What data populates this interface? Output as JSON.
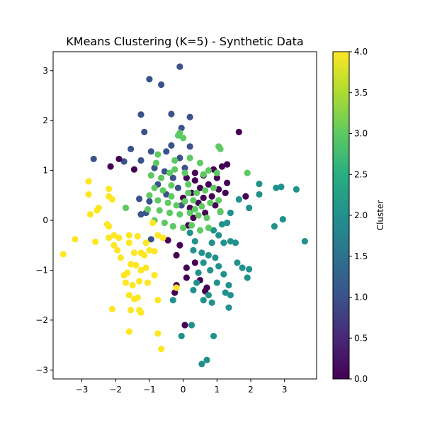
{
  "chart_data": {
    "type": "scatter",
    "title": "KMeans Clustering (K=5) - Synthetic Data",
    "xlabel": "",
    "ylabel": "",
    "xlim": [
      -3.85,
      3.95
    ],
    "ylim": [
      -3.18,
      3.38
    ],
    "xticks": [
      -3,
      -2,
      -1,
      0,
      1,
      2,
      3
    ],
    "yticks": [
      -3,
      -2,
      -1,
      0,
      1,
      2,
      3
    ],
    "grid": false,
    "colorbar": {
      "label": "Cluster",
      "range": [
        0.0,
        4.0
      ],
      "ticks": [
        "0.0",
        "0.5",
        "1.0",
        "1.5",
        "2.0",
        "2.5",
        "3.0",
        "3.5",
        "4.0"
      ],
      "colormap": "viridis"
    },
    "cluster_colors": [
      "#440154",
      "#3b528b",
      "#21918c",
      "#5ec962",
      "#fde725"
    ],
    "points": [
      {
        "x": -0.1,
        "y": 3.08,
        "c": 1
      },
      {
        "x": -1.0,
        "y": 2.83,
        "c": 1
      },
      {
        "x": -0.65,
        "y": 2.72,
        "c": 1
      },
      {
        "x": -0.35,
        "y": 2.13,
        "c": 1
      },
      {
        "x": 0.2,
        "y": 2.07,
        "c": 1
      },
      {
        "x": -1.25,
        "y": 2.12,
        "c": 1
      },
      {
        "x": -1.15,
        "y": 1.77,
        "c": 1
      },
      {
        "x": -0.05,
        "y": 1.85,
        "c": 1
      },
      {
        "x": -1.55,
        "y": 1.43,
        "c": 1
      },
      {
        "x": -0.95,
        "y": 1.38,
        "c": 1
      },
      {
        "x": -0.35,
        "y": 1.5,
        "c": 1
      },
      {
        "x": 0.2,
        "y": 1.48,
        "c": 1
      },
      {
        "x": -0.5,
        "y": 1.38,
        "c": 1
      },
      {
        "x": -2.65,
        "y": 1.23,
        "c": 1
      },
      {
        "x": -1.75,
        "y": 1.18,
        "c": 1
      },
      {
        "x": -1.25,
        "y": 1.2,
        "c": 1
      },
      {
        "x": -0.85,
        "y": 1.05,
        "c": 1
      },
      {
        "x": -0.55,
        "y": 0.98,
        "c": 1
      },
      {
        "x": -0.3,
        "y": 0.85,
        "c": 1
      },
      {
        "x": -0.75,
        "y": 0.72,
        "c": 1
      },
      {
        "x": -0.5,
        "y": 0.52,
        "c": 1
      },
      {
        "x": -1.3,
        "y": 0.43,
        "c": 1
      },
      {
        "x": -1.0,
        "y": 0.38,
        "c": 1
      },
      {
        "x": -1.25,
        "y": 0.12,
        "c": 1
      },
      {
        "x": -0.95,
        "y": -0.38,
        "c": 1
      },
      {
        "x": -1.1,
        "y": 0.15,
        "c": 1
      },
      {
        "x": -0.1,
        "y": 1.25,
        "c": 1
      },
      {
        "x": 0.05,
        "y": 1.05,
        "c": 1
      },
      {
        "x": -0.15,
        "y": 0.65,
        "c": 1
      },
      {
        "x": -0.05,
        "y": 0.3,
        "c": 1
      },
      {
        "x": 1.65,
        "y": 1.77,
        "c": 0
      },
      {
        "x": -2.15,
        "y": 1.08,
        "c": 0
      },
      {
        "x": -1.45,
        "y": 1.02,
        "c": 0
      },
      {
        "x": -1.9,
        "y": 1.23,
        "c": 0
      },
      {
        "x": 0.1,
        "y": 0.85,
        "c": 0
      },
      {
        "x": 0.35,
        "y": 0.8,
        "c": 0
      },
      {
        "x": 0.6,
        "y": 0.9,
        "c": 0
      },
      {
        "x": 0.9,
        "y": 1.02,
        "c": 0
      },
      {
        "x": 1.15,
        "y": 1.08,
        "c": 0
      },
      {
        "x": 1.3,
        "y": 1.12,
        "c": 0
      },
      {
        "x": 1.0,
        "y": 0.85,
        "c": 0
      },
      {
        "x": 0.75,
        "y": 0.72,
        "c": 0
      },
      {
        "x": 0.5,
        "y": 0.65,
        "c": 0
      },
      {
        "x": 0.25,
        "y": 0.55,
        "c": 0
      },
      {
        "x": 0.0,
        "y": 0.45,
        "c": 0
      },
      {
        "x": 0.45,
        "y": 0.35,
        "c": 0
      },
      {
        "x": 0.85,
        "y": 0.48,
        "c": 0
      },
      {
        "x": 1.05,
        "y": 0.62,
        "c": 0
      },
      {
        "x": 1.3,
        "y": 0.75,
        "c": 0
      },
      {
        "x": 1.25,
        "y": 0.55,
        "c": 0
      },
      {
        "x": 1.85,
        "y": 0.48,
        "c": 0
      },
      {
        "x": 0.95,
        "y": 0.3,
        "c": 0
      },
      {
        "x": 0.65,
        "y": 0.15,
        "c": 0
      },
      {
        "x": 0.3,
        "y": 0.05,
        "c": 0
      },
      {
        "x": 0.15,
        "y": -0.1,
        "c": 0
      },
      {
        "x": -0.1,
        "y": -0.5,
        "c": 0
      },
      {
        "x": -0.45,
        "y": -0.4,
        "c": 0
      },
      {
        "x": -0.2,
        "y": -0.7,
        "c": 0
      },
      {
        "x": 0.1,
        "y": -0.95,
        "c": 0
      },
      {
        "x": 0.35,
        "y": -0.85,
        "c": 0
      },
      {
        "x": 0.1,
        "y": -1.15,
        "c": 0
      },
      {
        "x": -0.2,
        "y": -1.3,
        "c": 0
      },
      {
        "x": -0.25,
        "y": -1.45,
        "c": 0
      },
      {
        "x": 0.5,
        "y": -1.2,
        "c": 0
      },
      {
        "x": 0.7,
        "y": -1.35,
        "c": 0
      },
      {
        "x": 0.65,
        "y": -1.42,
        "c": 0
      },
      {
        "x": 0.05,
        "y": -2.1,
        "c": 0
      },
      {
        "x": 0.35,
        "y": 0.95,
        "c": 0
      },
      {
        "x": 0.2,
        "y": 0.25,
        "c": 0
      },
      {
        "x": 0.6,
        "y": 0.45,
        "c": 0
      },
      {
        "x": 2.25,
        "y": 0.73,
        "c": 2
      },
      {
        "x": 2.75,
        "y": 0.65,
        "c": 2
      },
      {
        "x": 2.9,
        "y": 0.67,
        "c": 2
      },
      {
        "x": 3.35,
        "y": 0.62,
        "c": 2
      },
      {
        "x": 2.25,
        "y": 0.52,
        "c": 2
      },
      {
        "x": 1.65,
        "y": 0.42,
        "c": 2
      },
      {
        "x": 1.95,
        "y": 0.25,
        "c": 2
      },
      {
        "x": 1.1,
        "y": 0.17,
        "c": 2
      },
      {
        "x": 1.4,
        "y": 0.15,
        "c": 2
      },
      {
        "x": 2.95,
        "y": 0.02,
        "c": 2
      },
      {
        "x": 2.7,
        "y": -0.12,
        "c": 2
      },
      {
        "x": 3.6,
        "y": -0.42,
        "c": 2
      },
      {
        "x": 1.15,
        "y": -0.08,
        "c": 2
      },
      {
        "x": 1.3,
        "y": -0.05,
        "c": 2
      },
      {
        "x": 0.9,
        "y": -0.2,
        "c": 2
      },
      {
        "x": 1.2,
        "y": -0.45,
        "c": 2
      },
      {
        "x": 1.4,
        "y": -0.42,
        "c": 2
      },
      {
        "x": 1.55,
        "y": -0.45,
        "c": 2
      },
      {
        "x": 0.2,
        "y": -0.25,
        "c": 2
      },
      {
        "x": 0.35,
        "y": -0.42,
        "c": 2
      },
      {
        "x": 0.55,
        "y": -0.65,
        "c": 2
      },
      {
        "x": 0.75,
        "y": -0.7,
        "c": 2
      },
      {
        "x": 0.95,
        "y": -0.75,
        "c": 2
      },
      {
        "x": 1.05,
        "y": -0.92,
        "c": 2
      },
      {
        "x": 0.3,
        "y": -0.6,
        "c": 2
      },
      {
        "x": 0.6,
        "y": -0.85,
        "c": 2
      },
      {
        "x": 0.8,
        "y": -1.0,
        "c": 2
      },
      {
        "x": 0.45,
        "y": -1.05,
        "c": 2
      },
      {
        "x": 1.2,
        "y": -1.08,
        "c": 2
      },
      {
        "x": 1.0,
        "y": -1.25,
        "c": 2
      },
      {
        "x": 1.6,
        "y": -0.85,
        "c": 2
      },
      {
        "x": 1.75,
        "y": -0.95,
        "c": 2
      },
      {
        "x": 1.95,
        "y": -0.98,
        "c": 2
      },
      {
        "x": 1.9,
        "y": -1.15,
        "c": 2
      },
      {
        "x": 1.35,
        "y": -1.3,
        "c": 2
      },
      {
        "x": 1.25,
        "y": -1.45,
        "c": 2
      },
      {
        "x": 1.4,
        "y": -1.5,
        "c": 2
      },
      {
        "x": 0.75,
        "y": -1.5,
        "c": 2
      },
      {
        "x": 0.6,
        "y": -1.6,
        "c": 2
      },
      {
        "x": 0.3,
        "y": -1.4,
        "c": 2
      },
      {
        "x": -0.3,
        "y": -1.6,
        "c": 2
      },
      {
        "x": 0.85,
        "y": -1.65,
        "c": 2
      },
      {
        "x": 1.35,
        "y": -1.75,
        "c": 2
      },
      {
        "x": 0.25,
        "y": -2.1,
        "c": 2
      },
      {
        "x": -0.05,
        "y": -2.32,
        "c": 2
      },
      {
        "x": 0.9,
        "y": -2.32,
        "c": 2
      },
      {
        "x": 0.7,
        "y": -2.8,
        "c": 2
      },
      {
        "x": 0.55,
        "y": -2.88,
        "c": 2
      },
      {
        "x": 0.85,
        "y": -0.45,
        "c": 2
      },
      {
        "x": 1.05,
        "y": -0.3,
        "c": 2
      },
      {
        "x": 0.4,
        "y": -1.25,
        "c": 2
      },
      {
        "x": -0.1,
        "y": 1.75,
        "c": 3
      },
      {
        "x": -0.15,
        "y": 1.7,
        "c": 3
      },
      {
        "x": 0.0,
        "y": 1.65,
        "c": 3
      },
      {
        "x": 1.05,
        "y": 1.48,
        "c": 3
      },
      {
        "x": 1.1,
        "y": 1.43,
        "c": 3
      },
      {
        "x": -0.75,
        "y": 1.32,
        "c": 3
      },
      {
        "x": -0.8,
        "y": 1.15,
        "c": 3
      },
      {
        "x": -0.25,
        "y": 1.2,
        "c": 3
      },
      {
        "x": 0.2,
        "y": 1.25,
        "c": 3
      },
      {
        "x": 0.5,
        "y": 1.15,
        "c": 3
      },
      {
        "x": 0.75,
        "y": 1.0,
        "c": 3
      },
      {
        "x": 1.0,
        "y": 0.95,
        "c": 3
      },
      {
        "x": 1.9,
        "y": 0.95,
        "c": 3
      },
      {
        "x": -0.95,
        "y": 0.9,
        "c": 3
      },
      {
        "x": -0.65,
        "y": 0.85,
        "c": 3
      },
      {
        "x": -0.4,
        "y": 0.95,
        "c": 3
      },
      {
        "x": -0.85,
        "y": 0.65,
        "c": 3
      },
      {
        "x": -0.6,
        "y": 0.6,
        "c": 3
      },
      {
        "x": -0.35,
        "y": 0.7,
        "c": 3
      },
      {
        "x": 0.15,
        "y": 0.72,
        "c": 3
      },
      {
        "x": 0.4,
        "y": 0.55,
        "c": 3
      },
      {
        "x": 0.65,
        "y": 0.6,
        "c": 3
      },
      {
        "x": 0.9,
        "y": 0.65,
        "c": 3
      },
      {
        "x": -1.0,
        "y": 0.5,
        "c": 3
      },
      {
        "x": -0.75,
        "y": 0.4,
        "c": 3
      },
      {
        "x": -0.45,
        "y": 0.35,
        "c": 3
      },
      {
        "x": -0.2,
        "y": 0.3,
        "c": 3
      },
      {
        "x": 0.05,
        "y": 0.38,
        "c": 3
      },
      {
        "x": 0.3,
        "y": 0.4,
        "c": 3
      },
      {
        "x": 0.55,
        "y": 0.28,
        "c": 3
      },
      {
        "x": 0.8,
        "y": 0.35,
        "c": 3
      },
      {
        "x": 1.05,
        "y": 0.4,
        "c": 3
      },
      {
        "x": -1.7,
        "y": 0.25,
        "c": 3
      },
      {
        "x": -1.05,
        "y": 0.22,
        "c": 3
      },
      {
        "x": -0.7,
        "y": 0.2,
        "c": 3
      },
      {
        "x": -0.4,
        "y": 0.15,
        "c": 3
      },
      {
        "x": -0.1,
        "y": 0.12,
        "c": 3
      },
      {
        "x": 0.2,
        "y": 0.15,
        "c": 3
      },
      {
        "x": 0.45,
        "y": 0.1,
        "c": 3
      },
      {
        "x": 0.7,
        "y": 0.05,
        "c": 3
      },
      {
        "x": 1.1,
        "y": 0.18,
        "c": 3
      },
      {
        "x": -0.85,
        "y": 0.0,
        "c": 3
      },
      {
        "x": -0.55,
        "y": -0.05,
        "c": 3
      },
      {
        "x": -0.3,
        "y": -0.12,
        "c": 3
      },
      {
        "x": 0.0,
        "y": -0.15,
        "c": 3
      },
      {
        "x": 0.25,
        "y": -0.1,
        "c": 3
      },
      {
        "x": 0.5,
        "y": -0.2,
        "c": 3
      },
      {
        "x": 0.75,
        "y": -0.15,
        "c": 3
      },
      {
        "x": -0.25,
        "y": 1.02,
        "c": 3
      },
      {
        "x": 0.05,
        "y": 0.95,
        "c": 3
      },
      {
        "x": 0.6,
        "y": 0.92,
        "c": 3
      },
      {
        "x": -0.35,
        "y": 0.48,
        "c": 3
      },
      {
        "x": 0.15,
        "y": 0.55,
        "c": 3
      },
      {
        "x": 0.35,
        "y": 0.22,
        "c": 3
      },
      {
        "x": -2.8,
        "y": 0.78,
        "c": 4
      },
      {
        "x": -2.2,
        "y": 0.63,
        "c": 4
      },
      {
        "x": -2.8,
        "y": 0.52,
        "c": 4
      },
      {
        "x": -2.2,
        "y": 0.48,
        "c": 4
      },
      {
        "x": -2.1,
        "y": 0.42,
        "c": 4
      },
      {
        "x": -2.5,
        "y": 0.25,
        "c": 4
      },
      {
        "x": -2.55,
        "y": 0.2,
        "c": 4
      },
      {
        "x": -2.75,
        "y": 0.12,
        "c": 4
      },
      {
        "x": -2.25,
        "y": -0.08,
        "c": 4
      },
      {
        "x": -2.2,
        "y": -0.12,
        "c": 4
      },
      {
        "x": -3.2,
        "y": -0.38,
        "c": 4
      },
      {
        "x": -2.6,
        "y": -0.43,
        "c": 4
      },
      {
        "x": -2.05,
        "y": -0.3,
        "c": 4
      },
      {
        "x": -1.9,
        "y": -0.35,
        "c": 4
      },
      {
        "x": -2.2,
        "y": -0.35,
        "c": 4
      },
      {
        "x": -1.6,
        "y": -0.3,
        "c": 4
      },
      {
        "x": -1.35,
        "y": -0.32,
        "c": 4
      },
      {
        "x": -0.9,
        "y": -0.05,
        "c": 4
      },
      {
        "x": -0.75,
        "y": -0.3,
        "c": 4
      },
      {
        "x": -1.1,
        "y": -0.45,
        "c": 4
      },
      {
        "x": -2.05,
        "y": -0.5,
        "c": 4
      },
      {
        "x": -1.95,
        "y": -0.6,
        "c": 4
      },
      {
        "x": -1.6,
        "y": -0.45,
        "c": 4
      },
      {
        "x": -1.45,
        "y": -0.65,
        "c": 4
      },
      {
        "x": -1.25,
        "y": -0.65,
        "c": 4
      },
      {
        "x": -1.0,
        "y": -0.6,
        "c": 4
      },
      {
        "x": -0.85,
        "y": -0.62,
        "c": 4
      },
      {
        "x": -3.55,
        "y": -0.68,
        "c": 4
      },
      {
        "x": -1.85,
        "y": -0.75,
        "c": 4
      },
      {
        "x": -1.55,
        "y": -0.88,
        "c": 4
      },
      {
        "x": -1.4,
        "y": -0.9,
        "c": 4
      },
      {
        "x": -1.1,
        "y": -0.95,
        "c": 4
      },
      {
        "x": -1.25,
        "y": -1.0,
        "c": 4
      },
      {
        "x": -1.65,
        "y": -1.05,
        "c": 4
      },
      {
        "x": -1.75,
        "y": -1.1,
        "c": 4
      },
      {
        "x": -0.85,
        "y": -1.1,
        "c": 4
      },
      {
        "x": -1.7,
        "y": -1.25,
        "c": 4
      },
      {
        "x": -1.5,
        "y": -1.3,
        "c": 4
      },
      {
        "x": -1.3,
        "y": -1.22,
        "c": 4
      },
      {
        "x": -1.05,
        "y": -1.25,
        "c": 4
      },
      {
        "x": -1.35,
        "y": -1.55,
        "c": 4
      },
      {
        "x": -1.45,
        "y": -1.58,
        "c": 4
      },
      {
        "x": -1.6,
        "y": -1.5,
        "c": 4
      },
      {
        "x": -0.2,
        "y": -1.35,
        "c": 4
      },
      {
        "x": -0.75,
        "y": -1.6,
        "c": 4
      },
      {
        "x": -1.25,
        "y": -1.85,
        "c": 4
      },
      {
        "x": -1.3,
        "y": -1.8,
        "c": 4
      },
      {
        "x": -1.55,
        "y": -1.8,
        "c": 4
      },
      {
        "x": -2.1,
        "y": -1.78,
        "c": 4
      },
      {
        "x": -1.6,
        "y": -2.23,
        "c": 4
      },
      {
        "x": -0.75,
        "y": -2.27,
        "c": 4
      },
      {
        "x": -0.65,
        "y": -2.58,
        "c": 4
      },
      {
        "x": -0.6,
        "y": -0.35,
        "c": 4
      },
      {
        "x": -1.15,
        "y": -0.7,
        "c": 4
      }
    ]
  }
}
